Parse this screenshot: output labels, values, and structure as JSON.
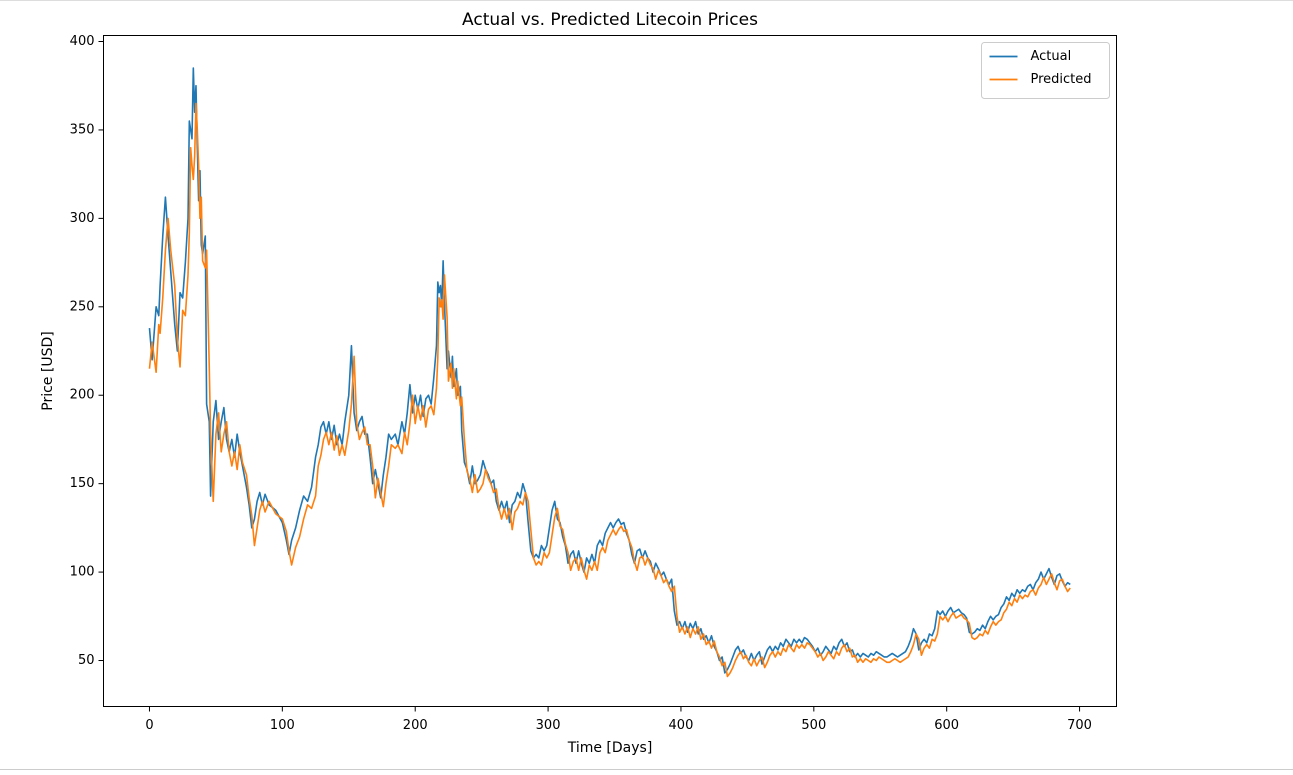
{
  "chart_data": {
    "type": "line",
    "title": "Actual vs. Predicted Litecoin Prices",
    "x_label": "Time [Days]",
    "y_label": "Price [USD]",
    "xlim": [
      -34.6,
      727.8
    ],
    "ylim": [
      24,
      403.4
    ],
    "xticks": [
      0,
      100,
      200,
      300,
      400,
      500,
      600,
      700
    ],
    "yticks": [
      50,
      100,
      150,
      200,
      250,
      300,
      350,
      400
    ],
    "grid": false,
    "legend_position": "upper right",
    "x": [
      0,
      2,
      5,
      7,
      8,
      10,
      12,
      14,
      16,
      19,
      21,
      23,
      25,
      27,
      29,
      30,
      31,
      32,
      33,
      34,
      35,
      36,
      37,
      38,
      39,
      40,
      42,
      43,
      45,
      46,
      48,
      50,
      52,
      54,
      56,
      58,
      60,
      62,
      64,
      66,
      68,
      70,
      73,
      75,
      77,
      79,
      81,
      83,
      85,
      87,
      90,
      95,
      100,
      103,
      105,
      107,
      110,
      113,
      116,
      119,
      122,
      125,
      127,
      129,
      131,
      133,
      135,
      137,
      139,
      141,
      143,
      145,
      147,
      150,
      152,
      154,
      156,
      158,
      160,
      162,
      164,
      166,
      168,
      170,
      172,
      174,
      176,
      178,
      180,
      182,
      185,
      187,
      190,
      192,
      194,
      196,
      198,
      200,
      202,
      204,
      206,
      208,
      210,
      212,
      214,
      216,
      217,
      218,
      219,
      220,
      221,
      222,
      224,
      225,
      227,
      228,
      229,
      231,
      232,
      234,
      235,
      237,
      239,
      241,
      243,
      245,
      247,
      249,
      251,
      253,
      255,
      257,
      259,
      261,
      263,
      265,
      267,
      269,
      271,
      273,
      275,
      277,
      279,
      281,
      283,
      285,
      287,
      289,
      291,
      293,
      295,
      297,
      299,
      301,
      303,
      305,
      307,
      309,
      311,
      313,
      315,
      317,
      319,
      321,
      323,
      325,
      327,
      329,
      331,
      333,
      335,
      337,
      339,
      341,
      343,
      345,
      347,
      349,
      351,
      353,
      355,
      357,
      359,
      361,
      363,
      365,
      367,
      369,
      371,
      373,
      375,
      377,
      379,
      381,
      383,
      385,
      387,
      389,
      391,
      393,
      395,
      397,
      399,
      401,
      403,
      405,
      407,
      409,
      411,
      413,
      415,
      417,
      419,
      421,
      423,
      425,
      427,
      429,
      431,
      433,
      435,
      437,
      439,
      441,
      443,
      445,
      447,
      449,
      451,
      453,
      455,
      457,
      459,
      461,
      463,
      465,
      467,
      469,
      471,
      473,
      475,
      477,
      479,
      481,
      483,
      485,
      487,
      489,
      491,
      493,
      495,
      497,
      499,
      501,
      503,
      505,
      507,
      509,
      511,
      513,
      515,
      517,
      519,
      521,
      523,
      525,
      527,
      529,
      531,
      533,
      535,
      537,
      539,
      541,
      543,
      545,
      547,
      549,
      551,
      553,
      555,
      557,
      559,
      561,
      563,
      565,
      567,
      569,
      571,
      573,
      575,
      577,
      579,
      581,
      583,
      585,
      587,
      589,
      591,
      593,
      595,
      597,
      599,
      601,
      603,
      605,
      607,
      609,
      611,
      613,
      615,
      617,
      619,
      621,
      623,
      625,
      627,
      629,
      631,
      633,
      635,
      637,
      639,
      641,
      643,
      645,
      647,
      649,
      651,
      653,
      655,
      657,
      659,
      661,
      663,
      665,
      667,
      669,
      671,
      673,
      675,
      677,
      679,
      681,
      683,
      685,
      687,
      689,
      691,
      693
    ],
    "series": [
      {
        "name": "Actual",
        "color": "#1f77b4",
        "values": [
          238,
          220,
          250,
          245,
          262,
          290,
          312,
          290,
          270,
          240,
          225,
          258,
          255,
          275,
          300,
          355,
          350,
          345,
          385,
          360,
          375,
          340,
          310,
          327,
          285,
          280,
          290,
          195,
          185,
          143,
          185,
          197,
          175,
          185,
          193,
          175,
          168,
          175,
          165,
          178,
          168,
          160,
          148,
          138,
          125,
          130,
          140,
          145,
          138,
          144,
          138,
          135,
          128,
          118,
          110,
          118,
          125,
          135,
          143,
          140,
          148,
          165,
          172,
          182,
          185,
          178,
          185,
          175,
          183,
          172,
          178,
          172,
          185,
          200,
          228,
          190,
          180,
          185,
          188,
          178,
          178,
          165,
          150,
          158,
          150,
          142,
          155,
          165,
          178,
          175,
          178,
          172,
          185,
          178,
          190,
          206,
          190,
          200,
          192,
          200,
          188,
          198,
          200,
          195,
          210,
          228,
          264,
          258,
          262,
          250,
          276,
          252,
          215,
          225,
          210,
          222,
          205,
          215,
          200,
          205,
          180,
          162,
          158,
          150,
          160,
          150,
          152,
          155,
          163,
          158,
          155,
          150,
          152,
          140,
          135,
          140,
          135,
          140,
          128,
          138,
          140,
          145,
          142,
          150,
          145,
          128,
          112,
          108,
          110,
          108,
          115,
          112,
          115,
          125,
          135,
          140,
          130,
          128,
          120,
          115,
          105,
          110,
          112,
          105,
          112,
          105,
          100,
          108,
          105,
          110,
          105,
          115,
          118,
          115,
          122,
          125,
          128,
          125,
          128,
          130,
          127,
          128,
          122,
          118,
          110,
          105,
          112,
          113,
          108,
          112,
          108,
          106,
          100,
          105,
          102,
          98,
          100,
          96,
          93,
          96,
          78,
          70,
          72,
          68,
          72,
          66,
          71,
          68,
          72,
          65,
          68,
          62,
          64,
          60,
          64,
          58,
          55,
          50,
          52,
          43,
          45,
          48,
          52,
          56,
          58,
          54,
          56,
          52,
          50,
          54,
          50,
          53,
          55,
          48,
          52,
          56,
          58,
          55,
          58,
          56,
          60,
          58,
          62,
          60,
          58,
          62,
          60,
          62,
          60,
          63,
          62,
          60,
          58,
          55,
          57,
          53,
          55,
          58,
          56,
          54,
          58,
          56,
          60,
          62,
          58,
          60,
          55,
          56,
          52,
          54,
          52,
          54,
          53,
          52,
          54,
          53,
          55,
          54,
          53,
          52,
          52,
          53,
          54,
          53,
          52,
          53,
          54,
          55,
          58,
          62,
          68,
          65,
          56,
          60,
          62,
          60,
          65,
          64,
          68,
          78,
          76,
          78,
          75,
          78,
          80,
          77,
          78,
          79,
          77,
          76,
          74,
          66,
          65,
          66,
          68,
          67,
          70,
          68,
          72,
          75,
          73,
          75,
          76,
          80,
          82,
          86,
          84,
          88,
          86,
          90,
          88,
          90,
          89,
          92,
          93,
          90,
          94,
          96,
          100,
          96,
          99,
          102,
          97,
          93,
          98,
          99,
          95,
          92,
          94,
          93
        ]
      },
      {
        "name": "Predicted",
        "color": "#ff7f0e",
        "values": [
          215,
          230,
          213,
          240,
          235,
          255,
          282,
          300,
          282,
          262,
          232,
          216,
          248,
          245,
          268,
          292,
          340,
          330,
          322,
          335,
          365,
          350,
          330,
          300,
          312,
          276,
          272,
          282,
          216,
          178,
          140,
          178,
          190,
          168,
          178,
          185,
          168,
          160,
          168,
          158,
          172,
          162,
          155,
          142,
          132,
          115,
          125,
          135,
          140,
          134,
          140,
          133,
          130,
          123,
          112,
          104,
          114,
          120,
          130,
          138,
          136,
          143,
          160,
          166,
          175,
          179,
          172,
          179,
          169,
          177,
          166,
          172,
          166,
          180,
          195,
          222,
          184,
          175,
          179,
          182,
          172,
          172,
          160,
          142,
          153,
          145,
          137,
          150,
          160,
          172,
          170,
          172,
          167,
          179,
          172,
          184,
          200,
          184,
          194,
          186,
          194,
          182,
          192,
          194,
          189,
          204,
          221,
          255,
          250,
          254,
          243,
          268,
          244,
          208,
          218,
          204,
          215,
          198,
          208,
          194,
          199,
          175,
          157,
          153,
          145,
          155,
          145,
          147,
          150,
          158,
          153,
          150,
          145,
          147,
          136,
          130,
          136,
          130,
          136,
          124,
          134,
          136,
          140,
          138,
          145,
          140,
          124,
          108,
          104,
          106,
          104,
          111,
          108,
          111,
          121,
          131,
          136,
          126,
          124,
          116,
          111,
          101,
          106,
          108,
          101,
          108,
          101,
          96,
          104,
          101,
          106,
          101,
          111,
          114,
          111,
          118,
          121,
          124,
          121,
          124,
          126,
          123,
          124,
          118,
          114,
          106,
          101,
          108,
          109,
          104,
          108,
          104,
          102,
          96,
          101,
          98,
          94,
          96,
          92,
          89,
          92,
          75,
          66,
          69,
          65,
          69,
          63,
          68,
          65,
          69,
          62,
          65,
          59,
          61,
          57,
          61,
          55,
          52,
          47,
          49,
          41,
          43,
          46,
          50,
          53,
          55,
          51,
          53,
          49,
          47,
          51,
          47,
          50,
          52,
          46,
          49,
          53,
          55,
          52,
          55,
          53,
          57,
          55,
          59,
          57,
          55,
          59,
          57,
          59,
          57,
          60,
          59,
          57,
          55,
          52,
          54,
          50,
          52,
          55,
          53,
          51,
          55,
          53,
          57,
          59,
          55,
          57,
          52,
          53,
          49,
          51,
          49,
          51,
          50,
          49,
          51,
          50,
          52,
          51,
          50,
          49,
          49,
          50,
          51,
          50,
          49,
          50,
          51,
          52,
          55,
          59,
          65,
          62,
          53,
          57,
          59,
          57,
          62,
          61,
          65,
          75,
          73,
          75,
          72,
          75,
          77,
          74,
          75,
          76,
          74,
          73,
          71,
          63,
          62,
          63,
          65,
          64,
          67,
          65,
          69,
          72,
          70,
          72,
          73,
          77,
          79,
          83,
          81,
          85,
          83,
          87,
          85,
          87,
          86,
          89,
          90,
          87,
          91,
          93,
          97,
          93,
          96,
          99,
          94,
          90,
          95,
          96,
          92,
          89,
          91
        ]
      }
    ]
  }
}
